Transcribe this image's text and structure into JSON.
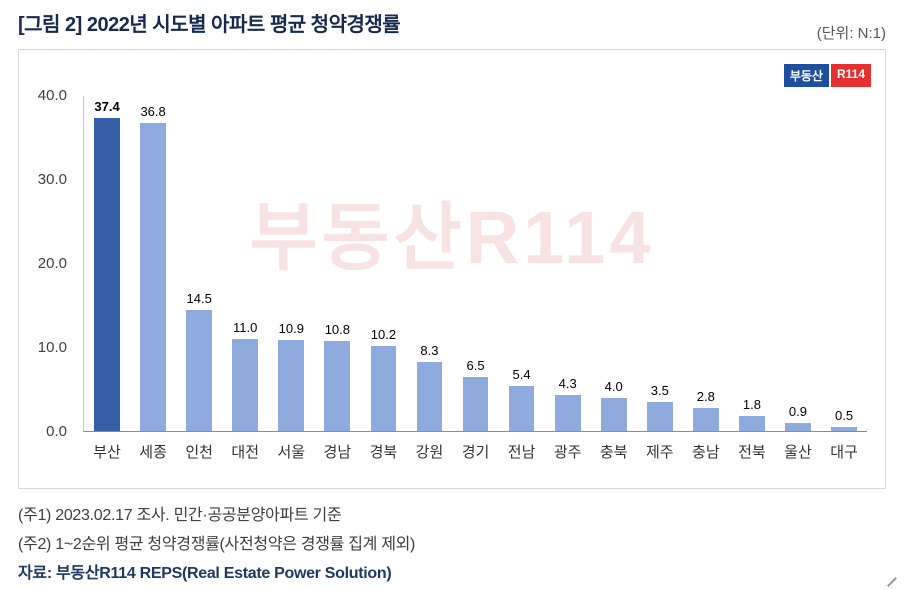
{
  "header": {
    "title": "[그림 2] 2022년 시도별 아파트 평균 청약경쟁률",
    "unit_label": "(단위: N:1)"
  },
  "logo": {
    "left": "부동산",
    "right": "R114"
  },
  "watermark": "부동산R114",
  "chart_data": {
    "type": "bar",
    "title": "[그림 2] 2022년 시도별 아파트 평균 청약경쟁률",
    "unit": "N:1",
    "categories": [
      "부산",
      "세종",
      "인천",
      "대전",
      "서울",
      "경남",
      "경북",
      "강원",
      "경기",
      "전남",
      "광주",
      "충북",
      "제주",
      "충남",
      "전북",
      "울산",
      "대구"
    ],
    "values": [
      37.4,
      36.8,
      14.5,
      11.0,
      10.9,
      10.8,
      10.2,
      8.3,
      6.5,
      5.4,
      4.3,
      4.0,
      3.5,
      2.8,
      1.8,
      0.9,
      0.5
    ],
    "value_labels": [
      "37.4",
      "36.8",
      "14.5",
      "11.0",
      "10.9",
      "10.8",
      "10.2",
      "8.3",
      "6.5",
      "5.4",
      "4.3",
      "4.0",
      "3.5",
      "2.8",
      "1.8",
      "0.9",
      "0.5"
    ],
    "highlight_index": 0,
    "ylim": [
      0,
      40
    ],
    "yticks": [
      0,
      10,
      20,
      30,
      40
    ],
    "ytick_labels": [
      "0.0",
      "10.0",
      "20.0",
      "30.0",
      "40.0"
    ],
    "xlabel": "",
    "ylabel": "",
    "grid": false,
    "legend": "none",
    "bar_color": "#8faadc",
    "highlight_color": "#3560a8"
  },
  "footnotes": {
    "note1": "(주1) 2023.02.17 조사. 민간·공공분양아파트 기준",
    "note2": "(주2) 1~2순위 평균 청약경쟁률(사전청약은 경쟁률 집계 제외)",
    "source": "자료: 부동산R114 REPS(Real Estate Power Solution)"
  }
}
